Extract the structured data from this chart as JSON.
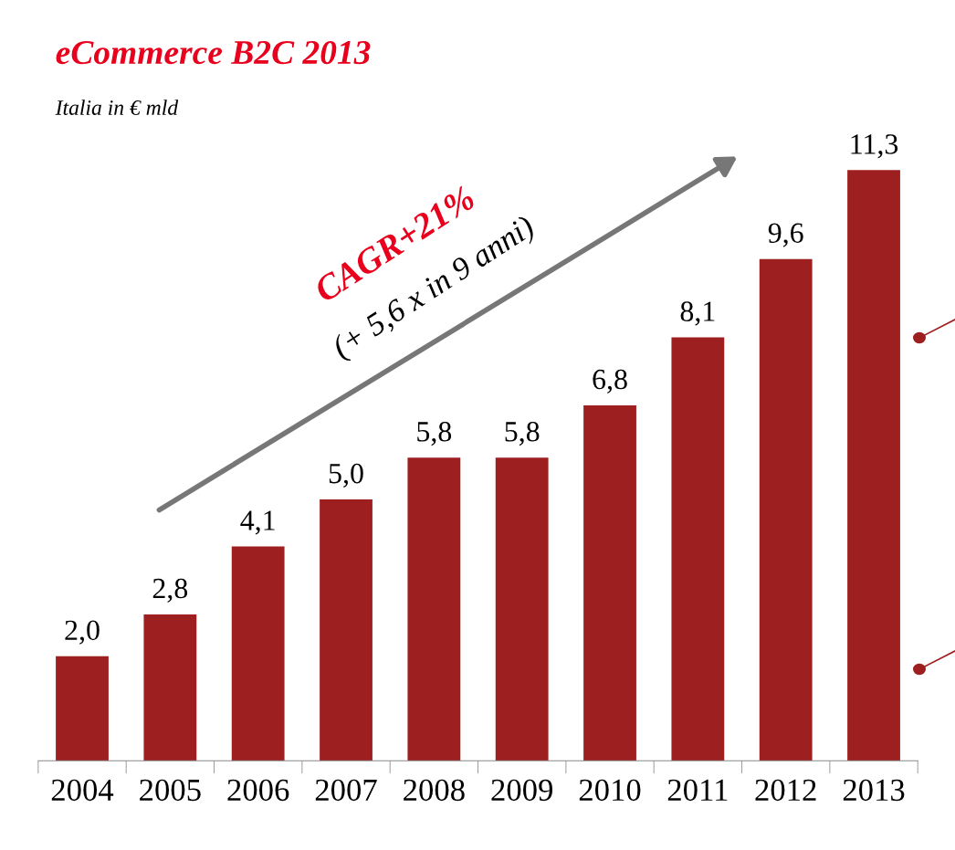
{
  "chart_data": {
    "type": "bar",
    "title": "eCommerce B2C 2013",
    "subtitle": "Italia in € mld",
    "categories": [
      "2004",
      "2005",
      "2006",
      "2007",
      "2008",
      "2009",
      "2010",
      "2011",
      "2012",
      "2013"
    ],
    "values": [
      2.0,
      2.8,
      4.1,
      5.0,
      5.8,
      5.8,
      6.8,
      8.1,
      9.6,
      11.3
    ],
    "value_labels": [
      "2,0",
      "2,8",
      "4,1",
      "5,0",
      "5,8",
      "5,8",
      "6,8",
      "8,1",
      "9,6",
      "11,3"
    ],
    "color": "#9e1f1f",
    "annotations": [
      "CAGR+21%",
      "(+ 5,6 x in 9 anni)"
    ],
    "grid": false,
    "legend": false
  }
}
